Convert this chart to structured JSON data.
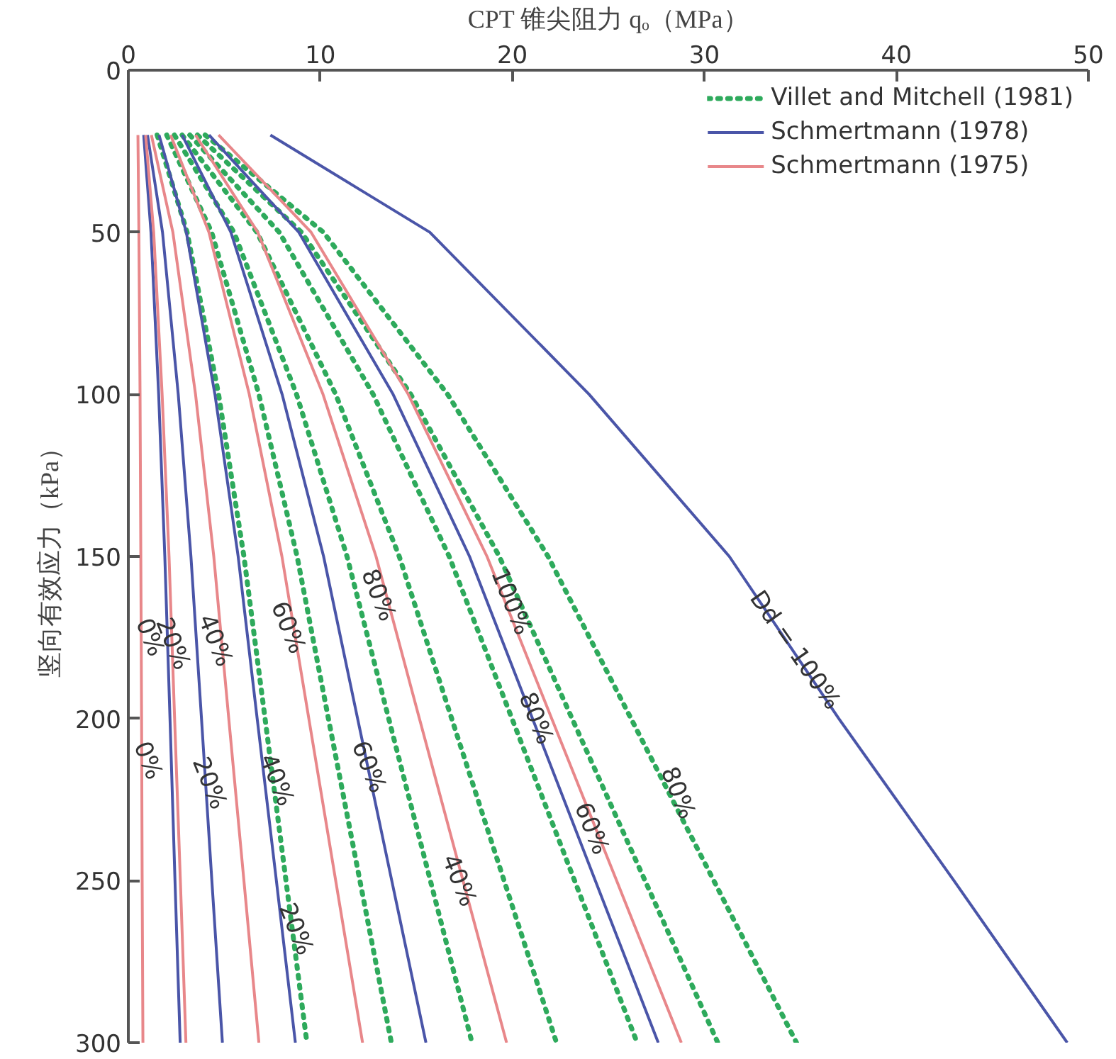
{
  "chart_data": {
    "type": "line",
    "xlabel": "CPT 锥尖阻力 qₒ（MPa）",
    "ylabel": "竖向有效应力（kPa）",
    "xlim": [
      0,
      50
    ],
    "xticks": [
      0,
      10,
      20,
      30,
      40,
      50
    ],
    "ylim": [
      300,
      0
    ],
    "yticks": [
      0,
      50,
      100,
      150,
      200,
      250,
      300
    ],
    "grid": false,
    "legend": "top right",
    "marker": "none",
    "series": [
      {
        "name": "Villet and Mitchell (1981)",
        "color": "#2eaa5c",
        "line_style": "dotted",
        "x": [
          1.5,
          3.06,
          4.7,
          6.02,
          7.12,
          8.21,
          9.3
        ],
        "values": [
          20,
          50,
          100,
          150,
          200,
          250,
          300
        ]
      },
      {
        "color": "#2eaa5c",
        "line_style": "dotted",
        "x": [
          2.0,
          4.34,
          6.8,
          8.79,
          10.42,
          12.06,
          13.7
        ],
        "values": [
          20,
          50,
          100,
          150,
          200,
          250,
          300
        ]
      },
      {
        "color": "#2eaa5c",
        "line_style": "dotted",
        "x": [
          2.4,
          5.5,
          8.76,
          11.39,
          13.56,
          15.73,
          17.9
        ],
        "values": [
          20,
          50,
          100,
          150,
          200,
          250,
          300
        ]
      },
      {
        "color": "#2eaa5c",
        "line_style": "dotted",
        "x": [
          2.8,
          6.7,
          10.8,
          14.11,
          16.84,
          19.57,
          22.3
        ],
        "values": [
          20,
          50,
          100,
          150,
          200,
          250,
          300
        ]
      },
      {
        "color": "#2eaa5c",
        "line_style": "dotted",
        "x": [
          3.2,
          7.86,
          12.75,
          16.71,
          19.98,
          23.24,
          26.5
        ],
        "values": [
          20,
          50,
          100,
          150,
          200,
          250,
          300
        ]
      },
      {
        "color": "#2eaa5c",
        "line_style": "dotted",
        "x": [
          3.6,
          9.02,
          14.71,
          19.32,
          23.11,
          26.91,
          30.7
        ],
        "values": [
          20,
          50,
          100,
          150,
          200,
          250,
          300
        ]
      },
      {
        "color": "#2eaa5c",
        "line_style": "dotted",
        "x": [
          4.0,
          10.16,
          16.63,
          21.86,
          26.18,
          30.49,
          34.8
        ],
        "values": [
          20,
          50,
          100,
          150,
          200,
          250,
          300
        ]
      },
      {
        "name": "Schmertmann (1978)",
        "color": "#4a55a8",
        "line_style": "solid",
        "x": [
          0.8,
          1.18,
          1.58,
          1.9,
          2.17,
          2.43,
          2.7
        ],
        "values": [
          20,
          50,
          100,
          150,
          200,
          250,
          300
        ]
      },
      {
        "color": "#4a55a8",
        "line_style": "solid",
        "x": [
          1.0,
          1.78,
          2.6,
          3.26,
          3.81,
          4.35,
          4.9
        ],
        "values": [
          20,
          50,
          100,
          150,
          200,
          250,
          300
        ]
      },
      {
        "color": "#4a55a8",
        "line_style": "solid",
        "x": [
          1.6,
          3.02,
          4.51,
          5.72,
          6.71,
          7.71,
          8.7
        ],
        "values": [
          20,
          50,
          100,
          150,
          200,
          250,
          300
        ]
      },
      {
        "color": "#4a55a8",
        "line_style": "solid",
        "x": [
          2.8,
          5.34,
          8.01,
          10.17,
          11.94,
          13.72,
          15.5
        ],
        "values": [
          20,
          50,
          100,
          150,
          200,
          250,
          300
        ]
      },
      {
        "color": "#4a55a8",
        "line_style": "solid",
        "x": [
          4.2,
          8.88,
          13.79,
          17.77,
          21.05,
          24.32,
          27.6
        ],
        "values": [
          20,
          50,
          100,
          150,
          200,
          250,
          300
        ]
      },
      {
        "color": "#4a55a8",
        "line_style": "solid",
        "x": [
          7.4,
          15.7,
          24.0,
          31.3,
          37.0,
          43.0,
          48.9
        ],
        "values": [
          20,
          50,
          100,
          150,
          200,
          250,
          300
        ]
      },
      {
        "name": "Schmertmann (1975)",
        "color": "#e8878a",
        "line_style": "solid",
        "x": [
          0.5,
          0.55,
          0.61,
          0.65,
          0.69,
          0.72,
          0.76
        ],
        "values": [
          20,
          50,
          100,
          150,
          200,
          250,
          300
        ]
      },
      {
        "color": "#e8878a",
        "line_style": "solid",
        "x": [
          0.9,
          1.32,
          1.76,
          2.12,
          2.41,
          2.71,
          3.0
        ],
        "values": [
          20,
          50,
          100,
          150,
          200,
          250,
          300
        ]
      },
      {
        "color": "#e8878a",
        "line_style": "solid",
        "x": [
          1.2,
          2.32,
          3.5,
          4.45,
          5.23,
          6.02,
          6.8
        ],
        "values": [
          20,
          50,
          100,
          150,
          200,
          250,
          300
        ]
      },
      {
        "color": "#e8878a",
        "line_style": "solid",
        "x": [
          2.2,
          4.2,
          6.3,
          8.0,
          9.4,
          10.8,
          12.2
        ],
        "values": [
          20,
          50,
          100,
          150,
          200,
          250,
          300
        ]
      },
      {
        "color": "#e8878a",
        "line_style": "solid",
        "x": [
          3.5,
          6.74,
          10.14,
          12.9,
          15.16,
          17.43,
          19.7
        ],
        "values": [
          20,
          50,
          100,
          150,
          200,
          250,
          300
        ]
      },
      {
        "color": "#e8878a",
        "line_style": "solid",
        "x": [
          4.7,
          9.52,
          14.58,
          18.68,
          22.05,
          25.43,
          28.8
        ],
        "values": [
          20,
          50,
          100,
          150,
          200,
          250,
          300
        ]
      }
    ],
    "annotations": [
      {
        "text": "0%",
        "x": 1.1,
        "y": 175
      },
      {
        "text": "20%",
        "x": 2.3,
        "y": 177
      },
      {
        "text": "40%",
        "x": 4.5,
        "y": 176
      },
      {
        "text": "60%",
        "x": 8.3,
        "y": 172
      },
      {
        "text": "80%",
        "x": 13.0,
        "y": 162
      },
      {
        "text": "100%",
        "x": 19.9,
        "y": 164
      },
      {
        "text": "0%",
        "x": 1.0,
        "y": 213
      },
      {
        "text": "20%",
        "x": 4.2,
        "y": 220
      },
      {
        "text": "40%",
        "x": 7.7,
        "y": 219
      },
      {
        "text": "60%",
        "x": 12.5,
        "y": 215
      },
      {
        "text": "80%",
        "x": 21.2,
        "y": 200
      },
      {
        "text": "60%",
        "x": 24.1,
        "y": 234
      },
      {
        "text": "40%",
        "x": 17.2,
        "y": 250
      },
      {
        "text": "20%",
        "x": 8.7,
        "y": 265
      },
      {
        "text": "80%",
        "x": 28.6,
        "y": 223
      },
      {
        "text": "Dd = 100%",
        "x": 34.7,
        "y": 179
      }
    ]
  }
}
